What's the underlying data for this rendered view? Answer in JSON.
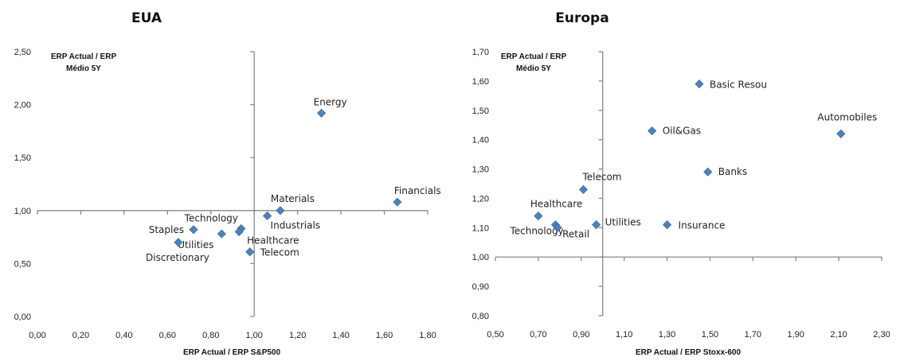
{
  "chart_data": [
    {
      "type": "scatter",
      "title": "EUA",
      "xlabel": "ERP Actual / ERP S&P500",
      "ylabel_line1": "ERP Actual / ERP",
      "ylabel_line2": "Médio 5Y",
      "xlim": [
        0,
        1.8
      ],
      "ylim": [
        0,
        2.5
      ],
      "x_ticks": [
        "0,00",
        "0,20",
        "0,40",
        "0,60",
        "0,80",
        "1,00",
        "1,20",
        "1,40",
        "1,60",
        "1,80"
      ],
      "y_ticks": [
        "0,00",
        "0,50",
        "1,00",
        "1,50",
        "2,00",
        "2,50"
      ],
      "cross": [
        1.0,
        1.0
      ],
      "points": [
        {
          "label": "Energy",
          "x": 1.31,
          "y": 1.92
        },
        {
          "label": "Financials",
          "x": 1.66,
          "y": 1.08
        },
        {
          "label": "Materials",
          "x": 1.12,
          "y": 1.0
        },
        {
          "label": "Industrials",
          "x": 1.06,
          "y": 0.95
        },
        {
          "label": "Technology",
          "x": 0.94,
          "y": 0.83
        },
        {
          "label": "Healthcare",
          "x": 0.93,
          "y": 0.8
        },
        {
          "label": "Staples",
          "x": 0.72,
          "y": 0.82
        },
        {
          "label": "Utilities",
          "x": 0.85,
          "y": 0.78
        },
        {
          "label": "Discretionary",
          "x": 0.65,
          "y": 0.7
        },
        {
          "label": "Telecom",
          "x": 0.98,
          "y": 0.61
        }
      ]
    },
    {
      "type": "scatter",
      "title": "Europa",
      "xlabel": "ERP Actual / ERP Stoxx-600",
      "ylabel_line1": "ERP Actual / ERP",
      "ylabel_line2": "Médio 5Y",
      "xlim": [
        0.5,
        2.3
      ],
      "ylim": [
        0.8,
        1.7
      ],
      "x_ticks": [
        "0,50",
        "0,70",
        "0,90",
        "1,10",
        "1,30",
        "1,50",
        "1,70",
        "1,90",
        "2,10",
        "2,30"
      ],
      "y_ticks": [
        "0,80",
        "0,90",
        "1,00",
        "1,10",
        "1,20",
        "1,30",
        "1,40",
        "1,50",
        "1,60",
        "1,70"
      ],
      "cross": [
        1.0,
        1.0
      ],
      "points": [
        {
          "label": "Basic Resou",
          "x": 1.45,
          "y": 1.59
        },
        {
          "label": "Oil&Gas",
          "x": 1.23,
          "y": 1.43
        },
        {
          "label": "Automobiles",
          "x": 2.11,
          "y": 1.42
        },
        {
          "label": "Banks",
          "x": 1.49,
          "y": 1.29
        },
        {
          "label": "Telecom",
          "x": 0.91,
          "y": 1.23
        },
        {
          "label": "Healthcare",
          "x": 0.7,
          "y": 1.14
        },
        {
          "label": "Technology",
          "x": 0.78,
          "y": 1.11
        },
        {
          "label": "Retail",
          "x": 0.79,
          "y": 1.1
        },
        {
          "label": "Utilities",
          "x": 0.97,
          "y": 1.11
        },
        {
          "label": "Insurance",
          "x": 1.3,
          "y": 1.11
        }
      ]
    }
  ]
}
